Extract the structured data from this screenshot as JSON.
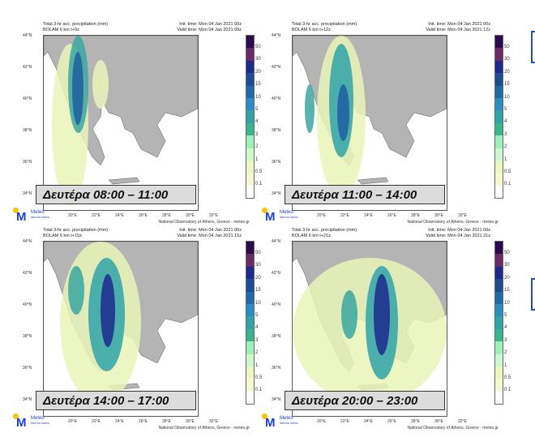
{
  "panels": [
    {
      "title": "Total 3-hr acc. precipitation (mm)",
      "model": "BOLAM 6 km t+9z",
      "init": "Init. time: Mon 04 Jan 2021 00z",
      "valid": "Valid time: Mon 04 Jan 2021 09z",
      "label": "Δευτέρα 08:00 – 11:00",
      "credit": "National Observatory of Athens, Greece - meteo.gr"
    },
    {
      "title": "Total 3-hr acc. precipitation (mm)",
      "model": "BOLAM 6 km t+12z",
      "init": "Init. time: Mon 04 Jan 2021 00z",
      "valid": "Valid time: Mon 04 Jan 2021 12z",
      "label": "Δευτέρα 11:00 – 14:00",
      "credit": "National Observatory of Athens, Greece - meteo.gr"
    },
    {
      "title": "Total 3-hr acc. precipitation (mm)",
      "model": "BOLAM 6 km t+15z",
      "init": "Init. time: Mon 04 Jan 2021 00z",
      "valid": "Valid time: Mon 04 Jan 2021 15z",
      "label": "Δευτέρα 14:00 – 17:00",
      "credit": "National Observatory of Athens, Greece - meteo.gr"
    },
    {
      "title": "Total 3-hr acc. precipitation (mm)",
      "model": "BOLAM 6 km t+21z",
      "init": "Init. time: Mon 04 Jan 2021 00z",
      "valid": "Valid time: Mon 04 Jan 2021 21z",
      "label": "Δευτέρα 20:00 – 23:00",
      "credit": "National Observatory of Athens, Greece - meteo.gr"
    }
  ],
  "logo": {
    "name": "Meteo",
    "tagline": "Nea tou kairou"
  },
  "chart_data": {
    "type": "heatmap",
    "variable": "Total 3-hr acc. precipitation (mm)",
    "lat_ticks": [
      "44°N",
      "42°N",
      "40°N",
      "38°N",
      "36°N",
      "34°N"
    ],
    "lon_ticks": [
      "20°E",
      "22°E",
      "24°E",
      "26°E",
      "28°E",
      "30°E",
      "32°E"
    ],
    "colorbar_levels": [
      "50",
      "30",
      "20",
      "15",
      "10",
      "5",
      "4",
      "3",
      "2",
      "1",
      "0.5",
      "0.1"
    ],
    "colorbar_colors": [
      "#2b0b4d",
      "#6a2a63",
      "#1c2a8c",
      "#1d4c90",
      "#1f6aa8",
      "#2a8cbf",
      "#2fa3a8",
      "#3ab48e",
      "#9ff0b8",
      "#cdf7cf",
      "#ecf7c0",
      "#f6f9cf",
      "#ffffff"
    ]
  }
}
